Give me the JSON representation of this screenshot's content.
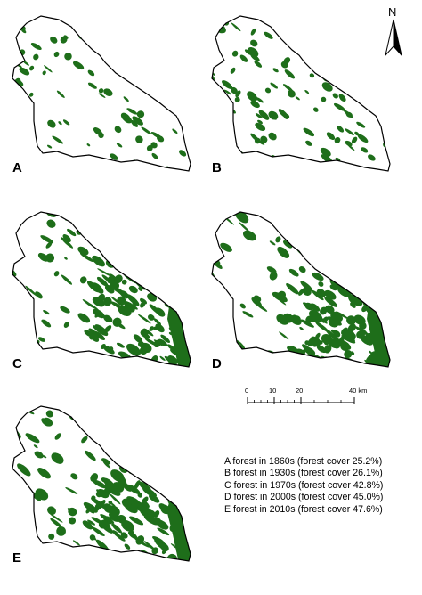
{
  "north_arrow": {
    "letter": "N"
  },
  "panels": [
    {
      "id": "A",
      "label": "A",
      "forest_cover_pct": 25.2
    },
    {
      "id": "B",
      "label": "B",
      "forest_cover_pct": 26.1
    },
    {
      "id": "C",
      "label": "C",
      "forest_cover_pct": 42.8
    },
    {
      "id": "D",
      "label": "D",
      "forest_cover_pct": 45.0
    },
    {
      "id": "E",
      "label": "E",
      "forest_cover_pct": 47.6
    }
  ],
  "scale_bar": {
    "ticks": [
      "0",
      "10",
      "20",
      "40 km"
    ]
  },
  "legend": [
    "A forest in 1860s (forest cover 25.2%)",
    "B forest in 1930s (forest cover 26.1%)",
    "C forest in 1970s (forest cover 42.8%)",
    "D forest in 2000s (forest cover 45.0%)",
    "E forest in 2010s (forest cover 47.6%)"
  ],
  "colors": {
    "forest": "#1e6e1a",
    "outline": "#000000",
    "background": "#ffffff"
  }
}
